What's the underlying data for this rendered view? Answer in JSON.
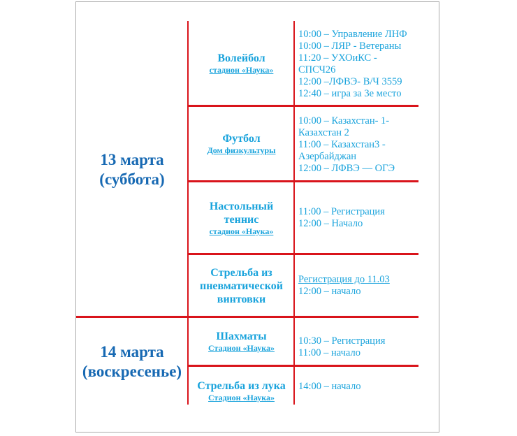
{
  "days": [
    {
      "label_line1": "13 марта",
      "label_line2": "(суббота)"
    },
    {
      "label_line1": "14 марта",
      "label_line2": "(воскресенье)"
    }
  ],
  "events": [
    {
      "sport": "Волейбол",
      "venue": "стадион «Наука»",
      "schedule": [
        "10:00 – Управление ЛНФ",
        "10:00 – ЛЯР - Ветераны",
        "11:20 – УХОиКС -",
        "СПСЧ26",
        "12:00 –ЛФВЭ- В/Ч 3559",
        "12:40 – игра за 3е место"
      ]
    },
    {
      "sport": "Футбол",
      "venue": "Дом физкультуры",
      "schedule": [
        "10:00 – Казахстан- 1-",
        "Казахстан 2",
        "11:00 – Казахстан3 -",
        "Азербайджан",
        "12:00 – ЛФВЭ — ОГЭ"
      ]
    },
    {
      "sport": "Настольный теннис",
      "venue": "стадион «Наука»",
      "schedule": [
        "11:00 – Регистрация",
        "12:00 – Начало"
      ]
    },
    {
      "sport": "Стрельба из пневматической винтовки",
      "registration_link": "Регистрация до 11.03",
      "schedule": [
        "12:00 – начало"
      ]
    },
    {
      "sport": "Шахматы",
      "venue": "Стадион «Наука»",
      "schedule": [
        "10:30 – Регистрация",
        "11:00 – начало"
      ]
    },
    {
      "sport": "Стрельба из лука",
      "venue": "Стадион «Наука»",
      "schedule": [
        "14:00 – начало"
      ]
    }
  ],
  "colors": {
    "grid": "#d9141b",
    "day_text": "#1769b3",
    "event_text": "#19a3dc"
  }
}
